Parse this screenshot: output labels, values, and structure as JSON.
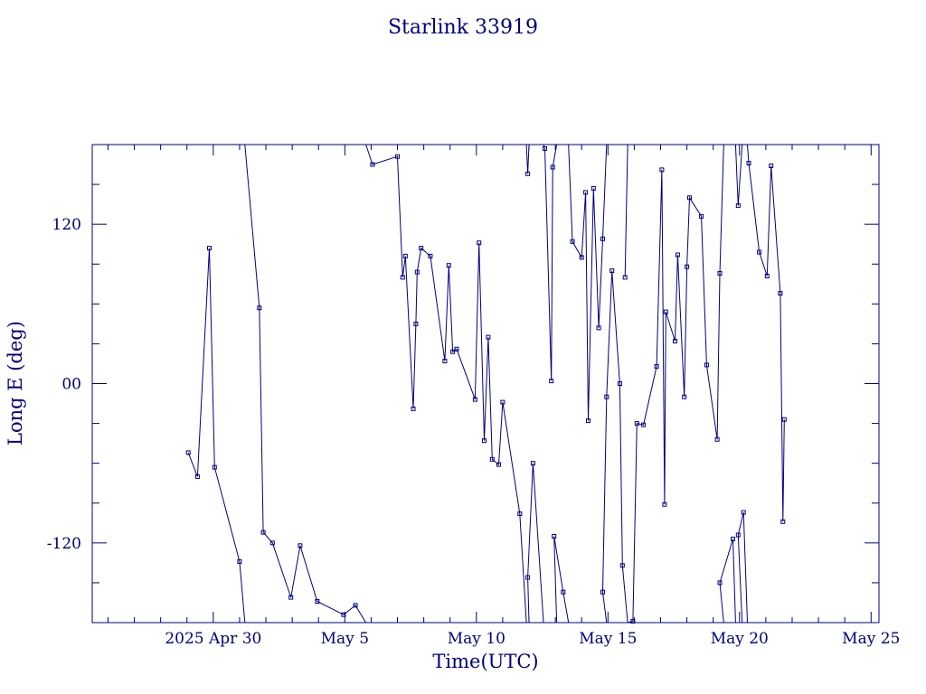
{
  "chart_data": {
    "type": "line",
    "title": "Starlink 33919",
    "xlabel": "Time(UTC)",
    "ylabel": "Long E (deg)",
    "xlim": [
      -4.6,
      25.3
    ],
    "ylim": [
      -180,
      180
    ],
    "x_ticks": [
      {
        "value": 0,
        "label": "2025 Apr 30"
      },
      {
        "value": 5,
        "label": "May  5"
      },
      {
        "value": 10,
        "label": "May 10"
      },
      {
        "value": 15,
        "label": "May 15"
      },
      {
        "value": 20,
        "label": "May 20"
      },
      {
        "value": 25,
        "label": "May 25"
      }
    ],
    "y_ticks": [
      {
        "value": 120,
        "label": "120"
      },
      {
        "value": 0,
        "label": "00"
      },
      {
        "value": -120,
        "label": "-120"
      }
    ],
    "color": "#00007f",
    "segments": [
      [
        [
          -0.95,
          -52
        ],
        [
          -0.6,
          -70
        ],
        [
          -0.15,
          102
        ],
        [
          0.05,
          -63
        ],
        [
          1.0,
          -134
        ],
        [
          1.2,
          -180
        ]
      ],
      [
        [
          1.2,
          180
        ],
        [
          1.75,
          57
        ],
        [
          1.9,
          -112
        ],
        [
          2.25,
          -120
        ],
        [
          2.95,
          -161
        ],
        [
          3.3,
          -122
        ],
        [
          3.95,
          -164
        ],
        [
          4.95,
          -174
        ],
        [
          5.4,
          -167
        ],
        [
          5.8,
          -180
        ]
      ],
      [
        [
          5.8,
          180
        ],
        [
          6.05,
          165
        ],
        [
          7.0,
          171
        ],
        [
          7.2,
          80
        ],
        [
          7.3,
          96
        ],
        [
          7.6,
          -19
        ],
        [
          7.7,
          45
        ],
        [
          7.75,
          84
        ],
        [
          7.9,
          102
        ],
        [
          8.25,
          96
        ],
        [
          8.8,
          17
        ],
        [
          8.95,
          89
        ],
        [
          9.1,
          24
        ],
        [
          9.25,
          26
        ],
        [
          9.95,
          -12
        ],
        [
          10.1,
          106
        ],
        [
          10.3,
          -43
        ],
        [
          10.45,
          35
        ],
        [
          10.6,
          -57
        ],
        [
          10.85,
          -61
        ],
        [
          11.0,
          -14
        ],
        [
          11.65,
          -98
        ],
        [
          11.9,
          -180
        ]
      ],
      [
        [
          11.9,
          180
        ],
        [
          11.95,
          158
        ],
        [
          12.0,
          180
        ]
      ],
      [
        [
          12.0,
          -180
        ],
        [
          11.95,
          -146
        ],
        [
          12.15,
          -60
        ],
        [
          12.55,
          -180
        ]
      ],
      [
        [
          12.55,
          180
        ],
        [
          12.6,
          177
        ],
        [
          12.85,
          2
        ],
        [
          12.9,
          163
        ],
        [
          13.05,
          180
        ]
      ],
      [
        [
          13.05,
          -180
        ],
        [
          12.95,
          -115
        ],
        [
          13.3,
          -157
        ],
        [
          13.5,
          -180
        ]
      ],
      [
        [
          13.5,
          180
        ],
        [
          13.65,
          107
        ],
        [
          14.0,
          95
        ],
        [
          14.15,
          144
        ],
        [
          14.25,
          -28
        ],
        [
          14.45,
          147
        ],
        [
          14.65,
          42
        ],
        [
          14.8,
          109
        ],
        [
          14.95,
          180
        ]
      ],
      [
        [
          14.95,
          -180
        ],
        [
          14.8,
          -157
        ],
        [
          14.95,
          -10
        ],
        [
          15.15,
          85
        ],
        [
          15.45,
          0
        ],
        [
          15.55,
          -137
        ],
        [
          15.75,
          -180
        ]
      ],
      [
        [
          15.75,
          180
        ],
        [
          15.65,
          80
        ],
        [
          15.75,
          180
        ]
      ],
      [
        [
          15.75,
          -180
        ],
        [
          15.95,
          -179
        ],
        [
          16.1,
          -30
        ],
        [
          16.35,
          -31
        ],
        [
          16.85,
          13
        ],
        [
          17.05,
          161
        ],
        [
          17.15,
          -91
        ],
        [
          17.2,
          54
        ],
        [
          17.55,
          32
        ],
        [
          17.65,
          97
        ],
        [
          17.9,
          -10
        ],
        [
          18.0,
          88
        ],
        [
          18.1,
          140
        ],
        [
          18.55,
          126
        ],
        [
          18.75,
          14
        ],
        [
          19.15,
          -42
        ],
        [
          19.25,
          83
        ],
        [
          19.4,
          180
        ]
      ],
      [
        [
          19.4,
          -180
        ],
        [
          19.25,
          -150
        ],
        [
          19.75,
          -117
        ],
        [
          19.85,
          -180
        ]
      ],
      [
        [
          19.85,
          180
        ],
        [
          19.95,
          134
        ],
        [
          20.1,
          180
        ]
      ],
      [
        [
          20.1,
          -180
        ],
        [
          19.95,
          -114
        ],
        [
          20.15,
          -97
        ],
        [
          20.3,
          -180
        ]
      ],
      [
        [
          20.3,
          180
        ],
        [
          20.35,
          166
        ],
        [
          20.75,
          99
        ],
        [
          21.05,
          81
        ],
        [
          21.2,
          164
        ],
        [
          21.55,
          68
        ],
        [
          21.65,
          -104
        ],
        [
          21.7,
          -27
        ]
      ]
    ]
  }
}
